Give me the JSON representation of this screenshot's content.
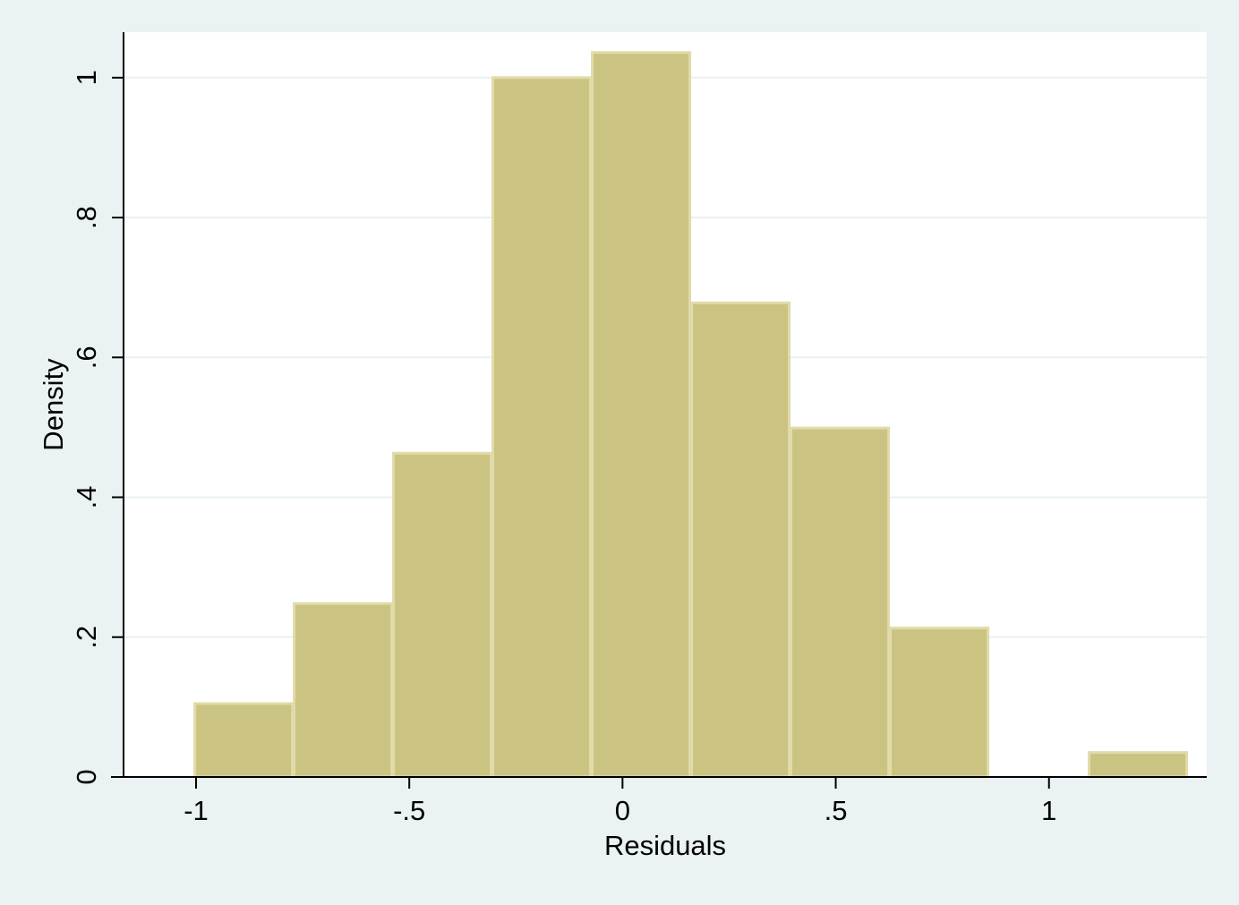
{
  "chart_data": {
    "type": "bar",
    "title": "",
    "xlabel": "Residuals",
    "ylabel": "Density",
    "x_ticks": [
      {
        "value": -1,
        "label": "-1"
      },
      {
        "value": -0.5,
        "label": "-.5"
      },
      {
        "value": 0,
        "label": "0"
      },
      {
        "value": 0.5,
        "label": ".5"
      },
      {
        "value": 1,
        "label": "1"
      }
    ],
    "y_ticks": [
      {
        "value": 0,
        "label": "0"
      },
      {
        "value": 0.2,
        "label": ".2"
      },
      {
        "value": 0.4,
        "label": ".4"
      },
      {
        "value": 0.6,
        "label": ".6"
      },
      {
        "value": 0.8,
        "label": ".8"
      },
      {
        "value": 1,
        "label": "1"
      }
    ],
    "xlim": [
      -1.17,
      1.37
    ],
    "ylim": [
      0,
      1.065
    ],
    "grid": "horizontal",
    "bins": [
      {
        "x0": -1.005,
        "x1": -0.772,
        "density": 0.105
      },
      {
        "x0": -0.772,
        "x1": -0.539,
        "density": 0.248
      },
      {
        "x0": -0.539,
        "x1": -0.306,
        "density": 0.463
      },
      {
        "x0": -0.306,
        "x1": -0.073,
        "density": 1.0
      },
      {
        "x0": -0.073,
        "x1": 0.16,
        "density": 1.036
      },
      {
        "x0": 0.16,
        "x1": 0.393,
        "density": 0.678
      },
      {
        "x0": 0.393,
        "x1": 0.626,
        "density": 0.499
      },
      {
        "x0": 0.626,
        "x1": 0.859,
        "density": 0.213
      },
      {
        "x0": 0.859,
        "x1": 1.092,
        "density": 0
      },
      {
        "x0": 1.092,
        "x1": 1.325,
        "density": 0.035
      }
    ],
    "colors": {
      "bar_fill": "#cbc382",
      "bar_edge": "#e0dba8",
      "plot_bg": "#ffffff",
      "outer_bg": "#eaf2f3",
      "grid": "#e9f0f1",
      "axis": "#000000"
    }
  }
}
